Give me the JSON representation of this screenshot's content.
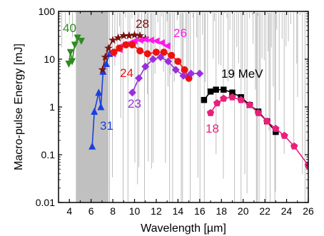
{
  "chart_data": {
    "type": "scatter",
    "xlabel": "Wavelength [µm]",
    "ylabel": "Macro-pulse Energy [mJ]",
    "xlim": [
      3,
      26
    ],
    "ylim": [
      0.01,
      100
    ],
    "yscale": "log",
    "grid": false,
    "x_ticks": [
      4,
      6,
      8,
      10,
      12,
      14,
      16,
      18,
      20,
      22,
      24,
      26
    ],
    "x_tick_labels": [
      "4",
      "6",
      "8",
      "10",
      "12",
      "14",
      "16",
      "18",
      "20",
      "22",
      "24",
      "26"
    ],
    "y_ticks": [
      0.01,
      0.1,
      1,
      10,
      100
    ],
    "y_tick_labels": [
      "0.01",
      "0.1",
      "1",
      "10",
      "100"
    ],
    "background_band": {
      "x_from": 4.6,
      "x_to": 7.6,
      "color": "#c0c0c0"
    },
    "background_lines_color": "#bdbdbd",
    "series": [
      {
        "label": "40",
        "color": "#2e8b20",
        "marker": "triangle-down",
        "x": [
          3.95,
          4.1,
          4.25,
          4.5,
          4.75,
          5.1
        ],
        "y": [
          8,
          14,
          9,
          20,
          28,
          24
        ]
      },
      {
        "label": "31",
        "color": "#1a3fe0",
        "marker": "triangle-up",
        "x": [
          6.1,
          6.3,
          6.7,
          6.9,
          7.1,
          7.4,
          7.7
        ],
        "y": [
          0.15,
          0.8,
          2.0,
          1.0,
          5.5,
          8.0,
          13
        ]
      },
      {
        "label": "28",
        "color": "#7a1010",
        "marker": "star",
        "x": [
          7.05,
          7.3,
          7.6,
          8.0,
          8.5,
          9.0,
          9.5,
          10.0,
          10.5,
          11.0
        ],
        "y": [
          6,
          11,
          17,
          25,
          28,
          31,
          31,
          32,
          31,
          27
        ]
      },
      {
        "label": "26",
        "color": "#ff18e8",
        "marker": "triangle-left",
        "x": [
          8.0,
          8.6,
          9.0,
          9.6,
          10.0,
          10.5,
          11.0,
          11.5,
          12.0,
          12.5,
          13.0
        ],
        "y": [
          13,
          16,
          20,
          22,
          24,
          25,
          26,
          25,
          24,
          22,
          19
        ]
      },
      {
        "label": "24",
        "color": "#ee1111",
        "marker": "circle",
        "x": [
          8.1,
          8.6,
          9.2,
          9.8,
          10.5,
          11.2,
          12.0,
          12.7,
          13.4,
          14.0,
          14.6,
          15.0
        ],
        "y": [
          14,
          17,
          20,
          20,
          15,
          13,
          14,
          14,
          12,
          9,
          6,
          4
        ]
      },
      {
        "label": "23",
        "color": "#9b2de0",
        "marker": "diamond",
        "x": [
          9.8,
          10.4,
          11.0,
          11.7,
          12.4,
          13.1,
          13.8,
          14.5,
          15.2,
          16.0
        ],
        "y": [
          2,
          4,
          7,
          10,
          11,
          9,
          6,
          4.5,
          5,
          5
        ]
      },
      {
        "label": "19 MeV",
        "color": "#000000",
        "marker": "square",
        "x": [
          16.4,
          17.0,
          17.5,
          18.2,
          19.0,
          19.8,
          20.6,
          21.4,
          22.2,
          23.0
        ],
        "y": [
          1.4,
          2.1,
          2.3,
          2.3,
          2.0,
          1.6,
          1.1,
          0.8,
          0.5,
          0.3
        ]
      },
      {
        "label": "18",
        "color": "#e8207a",
        "marker": "pentagon",
        "x": [
          17.0,
          17.6,
          18.2,
          19.0,
          19.8,
          20.6,
          21.4,
          22.2,
          23.0,
          23.8,
          24.7,
          26.0
        ],
        "y": [
          0.75,
          1.2,
          1.5,
          1.6,
          1.4,
          1.1,
          0.75,
          0.5,
          0.35,
          0.25,
          0.15,
          0.06
        ]
      }
    ]
  }
}
